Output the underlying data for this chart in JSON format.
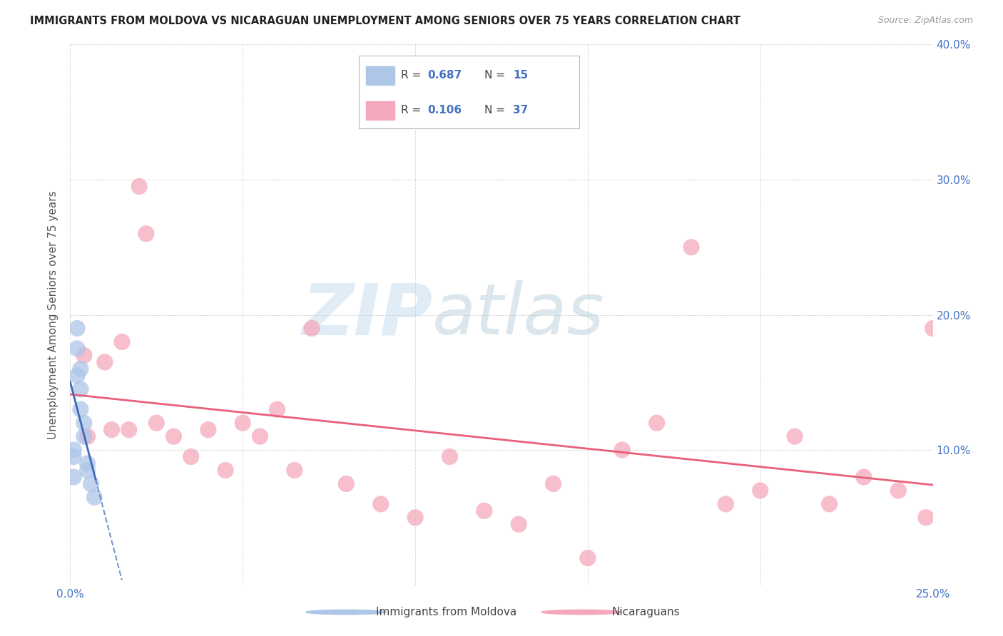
{
  "title": "IMMIGRANTS FROM MOLDOVA VS NICARAGUAN UNEMPLOYMENT AMONG SENIORS OVER 75 YEARS CORRELATION CHART",
  "source": "Source: ZipAtlas.com",
  "ylabel": "Unemployment Among Seniors over 75 years",
  "xlim": [
    0,
    0.25
  ],
  "ylim": [
    0,
    0.4
  ],
  "legend1_R": "0.687",
  "legend1_N": "15",
  "legend2_R": "0.106",
  "legend2_N": "37",
  "legend1_label": "Immigrants from Moldova",
  "legend2_label": "Nicaraguans",
  "moldova_color": "#aec6e8",
  "nicaragua_color": "#f5a8bc",
  "moldova_line_color": "#4169b8",
  "nicaragua_line_color": "#e8607a",
  "moldova_x": [
    0.001,
    0.001,
    0.001,
    0.002,
    0.002,
    0.002,
    0.003,
    0.003,
    0.003,
    0.004,
    0.004,
    0.005,
    0.005,
    0.006,
    0.007
  ],
  "moldova_y": [
    0.1,
    0.095,
    0.08,
    0.19,
    0.175,
    0.155,
    0.16,
    0.145,
    0.13,
    0.12,
    0.11,
    0.09,
    0.085,
    0.075,
    0.065
  ],
  "nicaragua_x": [
    0.004,
    0.005,
    0.01,
    0.012,
    0.015,
    0.017,
    0.02,
    0.022,
    0.025,
    0.03,
    0.035,
    0.04,
    0.045,
    0.05,
    0.055,
    0.06,
    0.065,
    0.07,
    0.08,
    0.09,
    0.1,
    0.11,
    0.12,
    0.13,
    0.14,
    0.15,
    0.16,
    0.17,
    0.18,
    0.19,
    0.2,
    0.21,
    0.22,
    0.23,
    0.24,
    0.248,
    0.25
  ],
  "nicaragua_y": [
    0.17,
    0.11,
    0.165,
    0.115,
    0.18,
    0.115,
    0.295,
    0.26,
    0.12,
    0.11,
    0.095,
    0.115,
    0.085,
    0.12,
    0.11,
    0.13,
    0.085,
    0.19,
    0.075,
    0.06,
    0.05,
    0.095,
    0.055,
    0.045,
    0.075,
    0.02,
    0.1,
    0.12,
    0.25,
    0.06,
    0.07,
    0.11,
    0.06,
    0.08,
    0.07,
    0.05,
    0.19
  ],
  "watermark_zip": "ZIP",
  "watermark_atlas": "atlas",
  "background_color": "#ffffff"
}
